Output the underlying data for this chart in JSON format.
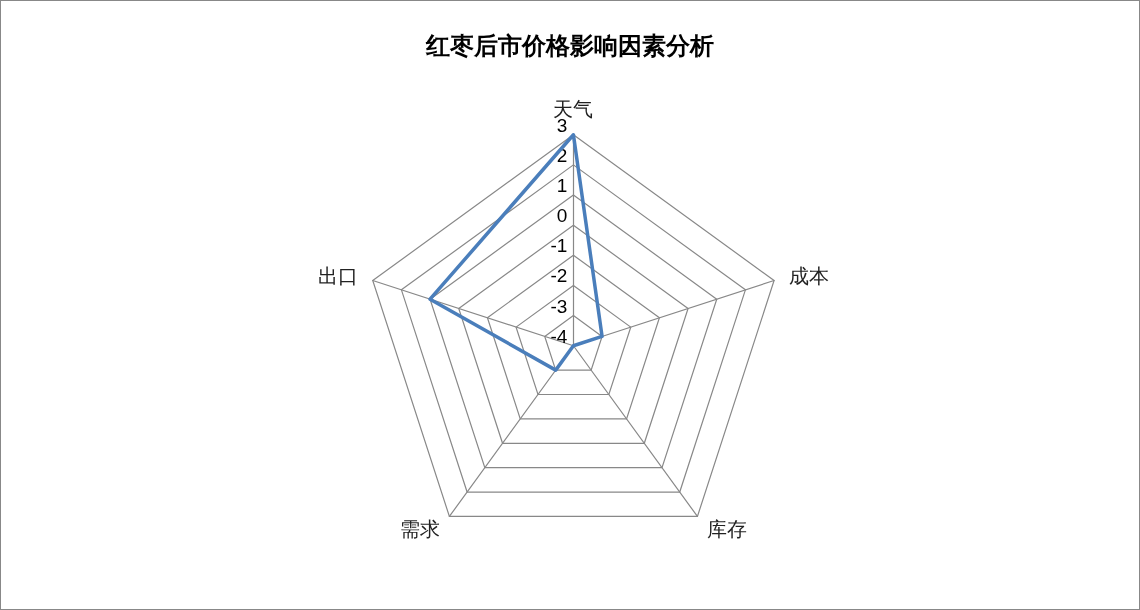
{
  "chart_data": {
    "type": "radar",
    "title": "红枣后市价格影响因素分析",
    "categories": [
      "天气",
      "成本",
      "库存",
      "需求",
      "出口"
    ],
    "series": [
      {
        "color": "#4a7ebb",
        "values": [
          3,
          -3,
          -4,
          -3,
          1
        ]
      }
    ],
    "ylim": [
      -4,
      3
    ],
    "yticks": [
      -4,
      -3,
      -2,
      -1,
      0,
      1,
      2,
      3
    ],
    "grid": true,
    "marker": "none",
    "line_style": "solid"
  }
}
